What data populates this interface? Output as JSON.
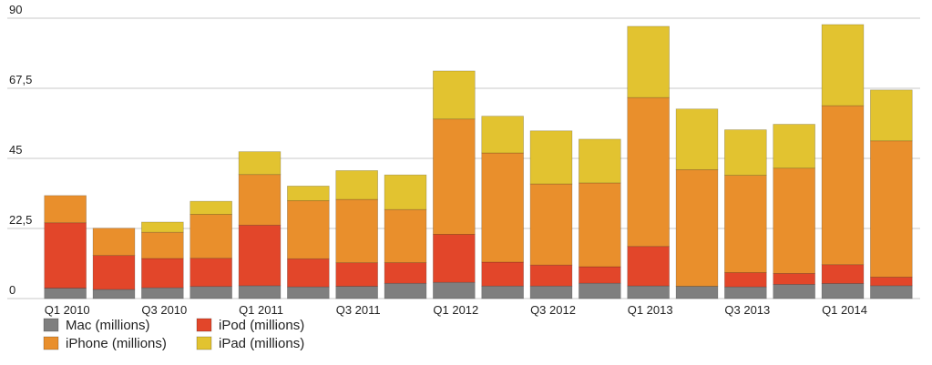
{
  "chart_data": {
    "type": "stacked-bar",
    "categories": [
      "Q1 2010",
      null,
      "Q3 2010",
      null,
      "Q1 2011",
      null,
      "Q3 2011",
      null,
      "Q1 2012",
      null,
      "Q3 2012",
      null,
      "Q1 2013",
      null,
      "Q3 2013",
      null,
      "Q1 2014",
      null
    ],
    "series": [
      {
        "name": "Mac (millions)",
        "color": "#7f7f7f",
        "values": [
          3.36,
          2.94,
          3.47,
          3.89,
          4.13,
          3.76,
          3.95,
          4.89,
          5.2,
          4.02,
          4.02,
          4.92,
          4.06,
          3.95,
          3.75,
          4.57,
          4.84,
          4.14
        ]
      },
      {
        "name": "iPod (millions)",
        "color": "#e2462a",
        "values": [
          20.97,
          10.89,
          9.41,
          9.05,
          19.45,
          9.02,
          7.54,
          6.62,
          15.4,
          7.67,
          6.75,
          5.3,
          12.68,
          0,
          4.57,
          3.5,
          6.05,
          2.76
        ]
      },
      {
        "name": "iPhone (millions)",
        "color": "#e98f2c",
        "values": [
          8.74,
          8.75,
          8.4,
          14.1,
          16.24,
          18.65,
          20.34,
          17.07,
          37.04,
          35.06,
          26.03,
          26.91,
          47.79,
          37.43,
          31.24,
          33.8,
          51.03,
          43.72
        ]
      },
      {
        "name": "iPad (millions)",
        "color": "#e2c330",
        "values": [
          0,
          0,
          3.27,
          4.19,
          7.33,
          4.69,
          9.25,
          11.12,
          15.43,
          11.8,
          17.04,
          14.04,
          22.86,
          19.48,
          14.62,
          14.08,
          26.04,
          16.35
        ]
      }
    ],
    "ylim": [
      0,
      90
    ],
    "yticks": [
      0,
      {
        "value": 22.5,
        "label": "22,5"
      },
      45,
      {
        "value": 67.5,
        "label": "67,5"
      },
      90
    ],
    "grid": true
  }
}
